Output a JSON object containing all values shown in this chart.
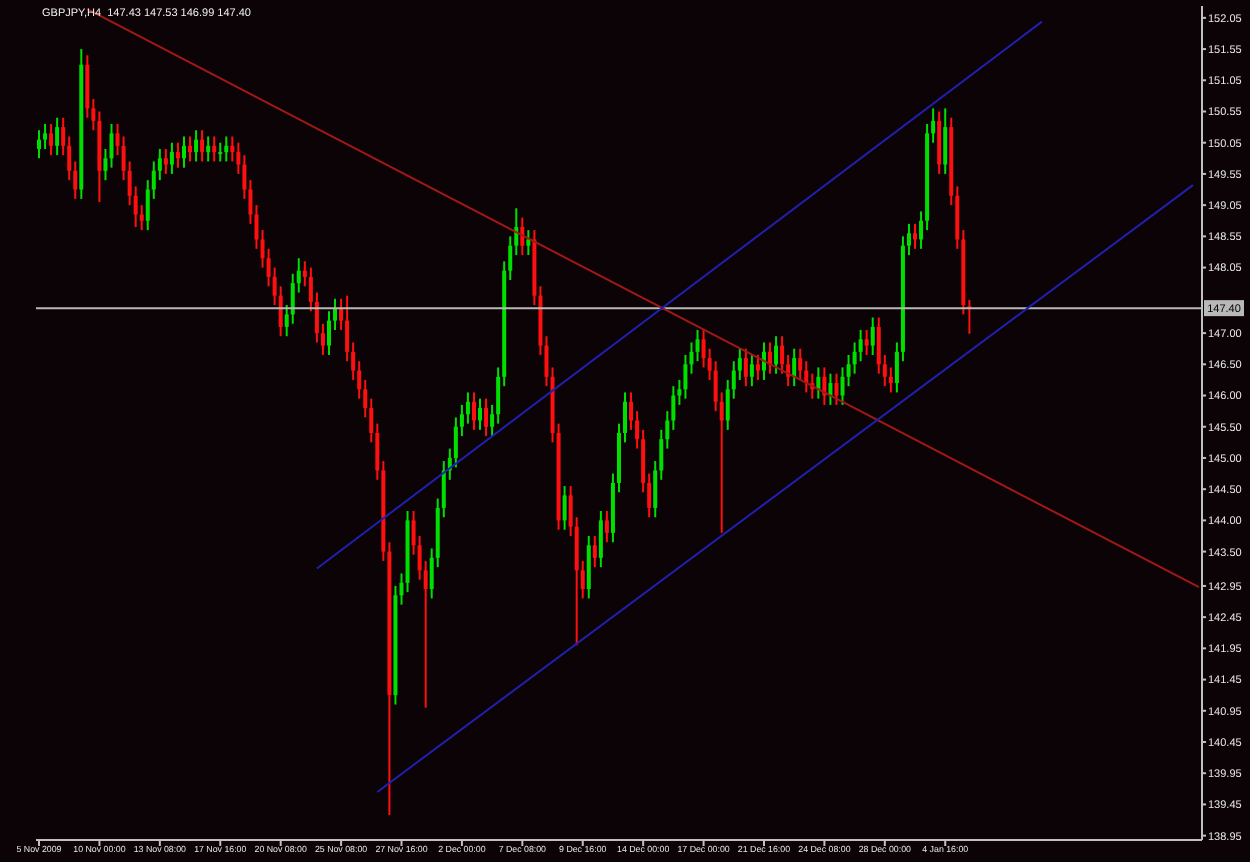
{
  "chart_data": {
    "type": "candlestick",
    "title": "GBPJPY,H4  147.43 147.53 146.99 147.40",
    "categories": [
      "5 Nov 2009",
      null,
      null,
      null,
      null,
      null,
      null,
      null,
      null,
      null,
      "10 Nov 00:00",
      null,
      null,
      null,
      null,
      null,
      null,
      null,
      null,
      null,
      "13 Nov 08:00",
      null,
      null,
      null,
      null,
      null,
      null,
      null,
      null,
      null,
      "17 Nov 16:00",
      null,
      null,
      null,
      null,
      null,
      null,
      null,
      null,
      null,
      "20 Nov 08:00",
      null,
      null,
      null,
      null,
      null,
      null,
      null,
      null,
      null,
      "25 Nov 08:00",
      null,
      null,
      null,
      null,
      null,
      null,
      null,
      null,
      null,
      "27 Nov 16:00",
      null,
      null,
      null,
      null,
      null,
      null,
      null,
      null,
      null,
      "2 Dec 00:00",
      null,
      null,
      null,
      null,
      null,
      null,
      null,
      null,
      null,
      "7 Dec 08:00",
      null,
      null,
      null,
      null,
      null,
      null,
      null,
      null,
      null,
      "9 Dec 16:00",
      null,
      null,
      null,
      null,
      null,
      null,
      null,
      null,
      null,
      "14 Dec 00:00",
      null,
      null,
      null,
      null,
      null,
      null,
      null,
      null,
      null,
      "17 Dec 00:00",
      null,
      null,
      null,
      null,
      null,
      null,
      null,
      null,
      null,
      "21 Dec 16:00",
      null,
      null,
      null,
      null,
      null,
      null,
      null,
      null,
      null,
      "24 Dec 08:00",
      null,
      null,
      null,
      null,
      null,
      null,
      null,
      null,
      null,
      "28 Dec 00:00",
      null,
      null,
      null,
      null,
      null,
      null,
      null,
      null,
      null,
      "4 Jan 16:00",
      null,
      null,
      null,
      null,
      null,
      null,
      null,
      null,
      null,
      null,
      null,
      null,
      null,
      null,
      null,
      null,
      null,
      null,
      null,
      null,
      null,
      null,
      null,
      null,
      null,
      null,
      null,
      null,
      null,
      null,
      null,
      null,
      null,
      null,
      null,
      null,
      null,
      null,
      null,
      null,
      null,
      null
    ],
    "ohlc": [
      [
        149.95,
        150.25,
        149.8,
        150.1
      ],
      [
        150.1,
        150.35,
        149.95,
        150.2
      ],
      [
        150.2,
        150.35,
        149.85,
        150.0
      ],
      [
        150.0,
        150.45,
        149.85,
        150.3
      ],
      [
        150.3,
        150.45,
        149.85,
        150.0
      ],
      [
        150.0,
        150.15,
        149.45,
        149.6
      ],
      [
        149.6,
        149.75,
        149.15,
        149.3
      ],
      [
        149.3,
        151.55,
        149.15,
        151.3
      ],
      [
        151.3,
        151.45,
        150.45,
        150.6
      ],
      [
        150.6,
        150.75,
        150.25,
        150.4
      ],
      [
        150.4,
        150.55,
        149.1,
        149.6
      ],
      [
        149.6,
        149.95,
        149.45,
        149.8
      ],
      [
        149.8,
        150.35,
        149.65,
        150.2
      ],
      [
        150.2,
        150.35,
        149.85,
        150.0
      ],
      [
        150.0,
        150.15,
        149.45,
        149.6
      ],
      [
        149.6,
        149.75,
        149.05,
        149.2
      ],
      [
        149.2,
        149.35,
        148.7,
        148.9
      ],
      [
        148.9,
        149.05,
        148.65,
        148.8
      ],
      [
        148.8,
        149.45,
        148.65,
        149.3
      ],
      [
        149.3,
        149.75,
        149.15,
        149.6
      ],
      [
        149.6,
        149.95,
        149.45,
        149.8
      ],
      [
        149.8,
        149.95,
        149.55,
        149.7
      ],
      [
        149.7,
        150.05,
        149.55,
        149.9
      ],
      [
        149.9,
        150.05,
        149.65,
        149.8
      ],
      [
        149.8,
        150.15,
        149.65,
        150.0
      ],
      [
        150.0,
        150.15,
        149.75,
        149.9
      ],
      [
        149.9,
        150.25,
        149.75,
        150.1
      ],
      [
        150.1,
        150.25,
        149.75,
        149.9
      ],
      [
        149.9,
        150.15,
        149.75,
        150.0
      ],
      [
        150.0,
        150.15,
        149.75,
        149.9
      ],
      [
        149.9,
        150.05,
        149.75,
        149.9
      ],
      [
        149.9,
        150.15,
        149.75,
        150.0
      ],
      [
        150.0,
        150.15,
        149.75,
        149.9
      ],
      [
        149.9,
        150.05,
        149.55,
        149.7
      ],
      [
        149.7,
        149.85,
        149.15,
        149.3
      ],
      [
        149.3,
        149.45,
        148.75,
        148.9
      ],
      [
        148.9,
        149.05,
        148.35,
        148.5
      ],
      [
        148.5,
        148.65,
        148.05,
        148.2
      ],
      [
        148.2,
        148.35,
        147.75,
        147.9
      ],
      [
        147.9,
        148.05,
        147.45,
        147.6
      ],
      [
        147.6,
        147.75,
        146.95,
        147.1
      ],
      [
        147.1,
        147.45,
        146.95,
        147.3
      ],
      [
        147.3,
        147.95,
        147.15,
        147.8
      ],
      [
        147.8,
        148.2,
        147.65,
        148.0
      ],
      [
        148.0,
        148.15,
        147.75,
        147.9
      ],
      [
        147.9,
        148.05,
        147.35,
        147.5
      ],
      [
        147.5,
        147.65,
        146.85,
        147.0
      ],
      [
        147.0,
        147.15,
        146.65,
        146.8
      ],
      [
        146.8,
        147.35,
        146.65,
        147.2
      ],
      [
        147.2,
        147.55,
        147.05,
        147.4
      ],
      [
        147.4,
        147.55,
        147.05,
        147.2
      ],
      [
        147.2,
        147.6,
        146.55,
        146.7
      ],
      [
        146.7,
        146.85,
        146.25,
        146.4
      ],
      [
        146.4,
        146.55,
        145.95,
        146.1
      ],
      [
        146.1,
        146.25,
        145.65,
        145.8
      ],
      [
        145.8,
        145.95,
        145.25,
        145.4
      ],
      [
        145.4,
        145.55,
        144.65,
        144.8
      ],
      [
        144.8,
        144.95,
        143.35,
        143.5
      ],
      [
        143.5,
        143.65,
        139.28,
        141.2
      ],
      [
        141.2,
        142.95,
        141.05,
        142.8
      ],
      [
        142.8,
        143.15,
        142.65,
        143.0
      ],
      [
        143.0,
        144.15,
        142.85,
        144.0
      ],
      [
        144.0,
        144.15,
        143.45,
        143.6
      ],
      [
        143.6,
        143.75,
        143.05,
        143.2
      ],
      [
        143.2,
        143.35,
        141.0,
        142.9
      ],
      [
        142.9,
        143.55,
        142.75,
        143.4
      ],
      [
        143.4,
        144.35,
        143.25,
        144.2
      ],
      [
        144.2,
        144.95,
        144.05,
        144.8
      ],
      [
        144.8,
        145.15,
        144.65,
        145.0
      ],
      [
        145.0,
        145.65,
        144.85,
        145.5
      ],
      [
        145.5,
        145.85,
        145.35,
        145.7
      ],
      [
        145.7,
        146.05,
        145.55,
        145.9
      ],
      [
        145.9,
        146.05,
        145.45,
        145.6
      ],
      [
        145.6,
        145.95,
        145.45,
        145.8
      ],
      [
        145.8,
        145.95,
        145.35,
        145.5
      ],
      [
        145.5,
        145.85,
        145.35,
        145.7
      ],
      [
        145.7,
        146.45,
        145.55,
        146.3
      ],
      [
        146.3,
        148.15,
        146.15,
        148.0
      ],
      [
        148.0,
        148.55,
        147.85,
        148.4
      ],
      [
        148.4,
        149.0,
        148.25,
        148.7
      ],
      [
        148.7,
        148.85,
        148.25,
        148.4
      ],
      [
        148.4,
        148.65,
        148.25,
        148.5
      ],
      [
        148.5,
        148.65,
        147.45,
        147.6
      ],
      [
        147.6,
        147.75,
        146.65,
        146.8
      ],
      [
        146.8,
        146.95,
        146.15,
        146.3
      ],
      [
        146.3,
        146.45,
        145.25,
        145.4
      ],
      [
        145.4,
        145.55,
        143.85,
        144.0
      ],
      [
        144.0,
        144.55,
        143.85,
        144.4
      ],
      [
        144.4,
        144.55,
        143.75,
        143.9
      ],
      [
        143.9,
        144.05,
        142.0,
        143.2
      ],
      [
        143.2,
        143.35,
        142.75,
        142.9
      ],
      [
        142.9,
        143.75,
        142.75,
        143.6
      ],
      [
        143.6,
        143.75,
        143.25,
        143.4
      ],
      [
        143.4,
        144.15,
        143.25,
        144.0
      ],
      [
        144.0,
        144.15,
        143.65,
        143.8
      ],
      [
        143.8,
        144.75,
        143.65,
        144.6
      ],
      [
        144.6,
        145.55,
        144.45,
        145.4
      ],
      [
        145.4,
        146.05,
        145.25,
        145.9
      ],
      [
        145.9,
        146.05,
        145.45,
        145.6
      ],
      [
        145.6,
        145.75,
        145.15,
        145.3
      ],
      [
        145.3,
        145.45,
        144.45,
        144.6
      ],
      [
        144.6,
        144.75,
        144.05,
        144.2
      ],
      [
        144.2,
        144.95,
        144.05,
        144.8
      ],
      [
        144.8,
        145.45,
        144.65,
        145.3
      ],
      [
        145.3,
        145.75,
        145.15,
        145.6
      ],
      [
        145.6,
        146.15,
        145.45,
        146.0
      ],
      [
        146.0,
        146.25,
        145.85,
        146.1
      ],
      [
        146.1,
        146.65,
        145.95,
        146.5
      ],
      [
        146.5,
        146.85,
        146.35,
        146.7
      ],
      [
        146.7,
        147.05,
        146.55,
        146.9
      ],
      [
        146.9,
        147.05,
        146.45,
        146.6
      ],
      [
        146.6,
        146.75,
        146.25,
        146.4
      ],
      [
        146.4,
        146.55,
        145.75,
        145.9
      ],
      [
        145.9,
        146.05,
        143.8,
        145.6
      ],
      [
        145.6,
        146.25,
        145.45,
        146.1
      ],
      [
        146.1,
        146.55,
        145.95,
        146.4
      ],
      [
        146.4,
        146.75,
        146.25,
        146.6
      ],
      [
        146.6,
        146.75,
        146.15,
        146.3
      ],
      [
        146.3,
        146.65,
        146.15,
        146.5
      ],
      [
        146.5,
        146.65,
        146.25,
        146.4
      ],
      [
        146.4,
        146.85,
        146.25,
        146.7
      ],
      [
        146.7,
        146.85,
        146.35,
        146.5
      ],
      [
        146.5,
        146.95,
        146.35,
        146.8
      ],
      [
        146.8,
        146.95,
        146.35,
        146.5
      ],
      [
        146.5,
        146.65,
        146.15,
        146.3
      ],
      [
        146.3,
        146.75,
        146.15,
        146.6
      ],
      [
        146.6,
        146.75,
        146.25,
        146.4
      ],
      [
        146.4,
        146.55,
        146.05,
        146.2
      ],
      [
        146.2,
        146.35,
        145.95,
        146.1
      ],
      [
        146.1,
        146.45,
        145.95,
        146.3
      ],
      [
        146.3,
        146.45,
        145.85,
        146.0
      ],
      [
        146.0,
        146.35,
        145.85,
        146.2
      ],
      [
        146.2,
        146.35,
        145.85,
        146.0
      ],
      [
        146.0,
        146.45,
        145.85,
        146.3
      ],
      [
        146.3,
        146.65,
        146.15,
        146.5
      ],
      [
        146.5,
        146.85,
        146.35,
        146.7
      ],
      [
        146.7,
        147.05,
        146.55,
        146.9
      ],
      [
        146.9,
        147.05,
        146.65,
        146.8
      ],
      [
        146.8,
        147.25,
        146.65,
        147.1
      ],
      [
        147.1,
        147.25,
        146.35,
        146.5
      ],
      [
        146.5,
        146.65,
        146.15,
        146.3
      ],
      [
        146.3,
        146.45,
        146.05,
        146.2
      ],
      [
        146.2,
        146.85,
        146.05,
        146.7
      ],
      [
        146.7,
        148.55,
        146.55,
        148.4
      ],
      [
        148.4,
        148.75,
        148.25,
        148.6
      ],
      [
        148.6,
        148.75,
        148.35,
        148.5
      ],
      [
        148.5,
        148.95,
        148.35,
        148.8
      ],
      [
        148.8,
        150.35,
        148.65,
        150.2
      ],
      [
        150.2,
        150.6,
        150.05,
        150.4
      ],
      [
        150.4,
        150.55,
        149.55,
        149.7
      ],
      [
        149.7,
        150.6,
        149.55,
        150.3
      ],
      [
        150.3,
        150.45,
        149.05,
        149.2
      ],
      [
        149.2,
        149.35,
        148.35,
        148.5
      ],
      [
        148.5,
        148.65,
        147.3,
        147.45
      ],
      [
        147.43,
        147.53,
        146.99,
        147.4
      ],
      null,
      null,
      null,
      null,
      null,
      null,
      null,
      null,
      null,
      null,
      null,
      null,
      null,
      null,
      null,
      null,
      null,
      null,
      null,
      null,
      null,
      null,
      null,
      null,
      null,
      null,
      null,
      null,
      null,
      null,
      null,
      null,
      null,
      null,
      null,
      null,
      null,
      null
    ],
    "series": [
      {
        "type": "line",
        "color": "#a01818",
        "values": [
          null,
          null,
          null,
          null,
          null,
          null,
          null,
          null,
          152.19,
          null,
          null,
          null,
          null,
          null,
          null,
          null,
          null,
          null,
          null,
          null,
          null,
          null,
          null,
          null,
          null,
          null,
          null,
          null,
          null,
          null,
          null,
          null,
          null,
          null,
          null,
          null,
          null,
          null,
          null,
          null,
          null,
          null,
          null,
          null,
          null,
          null,
          null,
          null,
          null,
          null,
          null,
          null,
          null,
          null,
          null,
          null,
          null,
          null,
          null,
          null,
          null,
          null,
          null,
          null,
          null,
          null,
          null,
          null,
          null,
          null,
          null,
          null,
          null,
          null,
          null,
          null,
          null,
          null,
          null,
          null,
          null,
          null,
          null,
          null,
          null,
          null,
          null,
          null,
          null,
          null,
          null,
          null,
          null,
          null,
          null,
          null,
          null,
          null,
          null,
          null,
          null,
          null,
          null,
          null,
          null,
          null,
          null,
          null,
          null,
          null,
          null,
          null,
          null,
          null,
          null,
          null,
          null,
          null,
          null,
          null,
          null,
          null,
          null,
          null,
          null,
          null,
          null,
          null,
          null,
          null,
          null,
          null,
          null,
          null,
          null,
          null,
          null,
          null,
          null,
          null,
          null,
          null,
          null,
          null,
          null,
          null,
          null,
          null,
          null,
          null,
          null,
          null,
          null,
          null,
          null,
          null,
          null,
          null,
          null,
          null,
          null,
          null,
          null,
          null,
          null,
          null,
          null,
          null,
          null,
          null,
          null,
          null,
          null,
          null,
          null,
          null,
          null,
          null,
          null,
          null,
          null,
          null,
          null,
          null,
          null,
          null,
          null,
          null,
          null,
          null,
          null,
          null,
          142.93
        ]
      },
      {
        "type": "line",
        "color": "#2020b0",
        "values": [
          null,
          null,
          null,
          null,
          null,
          null,
          null,
          null,
          null,
          null,
          null,
          null,
          null,
          null,
          null,
          null,
          null,
          null,
          null,
          null,
          null,
          null,
          null,
          null,
          null,
          null,
          null,
          null,
          null,
          null,
          null,
          null,
          null,
          null,
          null,
          null,
          null,
          null,
          null,
          null,
          null,
          null,
          null,
          null,
          null,
          null,
          143.23,
          null,
          null,
          null,
          null,
          null,
          null,
          null,
          null,
          null,
          null,
          null,
          null,
          null,
          null,
          null,
          null,
          null,
          null,
          null,
          null,
          null,
          null,
          null,
          null,
          null,
          null,
          null,
          null,
          null,
          null,
          null,
          null,
          null,
          null,
          null,
          null,
          null,
          null,
          null,
          null,
          null,
          null,
          null,
          null,
          null,
          null,
          null,
          null,
          null,
          null,
          null,
          null,
          null,
          null,
          null,
          null,
          null,
          null,
          null,
          null,
          null,
          null,
          null,
          null,
          null,
          null,
          null,
          null,
          null,
          null,
          null,
          null,
          null,
          null,
          null,
          null,
          null,
          null,
          null,
          null,
          null,
          null,
          null,
          null,
          null,
          null,
          null,
          null,
          null,
          null,
          null,
          null,
          null,
          null,
          null,
          null,
          null,
          null,
          null,
          null,
          null,
          null,
          null,
          null,
          null,
          null,
          null,
          null,
          null,
          null,
          null,
          null,
          null,
          null,
          null,
          null,
          null,
          null,
          null,
          151.99,
          null,
          null,
          null,
          null,
          null,
          null,
          null,
          null,
          null,
          null,
          null,
          null,
          null,
          null,
          null,
          null,
          null,
          null,
          null,
          null,
          null,
          null,
          null,
          null,
          null,
          null
        ]
      },
      {
        "type": "line",
        "color": "#2020b0",
        "values": [
          null,
          null,
          null,
          null,
          null,
          null,
          null,
          null,
          null,
          null,
          null,
          null,
          null,
          null,
          null,
          null,
          null,
          null,
          null,
          null,
          null,
          null,
          null,
          null,
          null,
          null,
          null,
          null,
          null,
          null,
          null,
          null,
          null,
          null,
          null,
          null,
          null,
          null,
          null,
          null,
          null,
          null,
          null,
          null,
          null,
          null,
          null,
          null,
          null,
          null,
          null,
          null,
          null,
          null,
          null,
          null,
          139.65,
          null,
          null,
          null,
          null,
          null,
          null,
          null,
          null,
          null,
          null,
          null,
          null,
          null,
          null,
          null,
          null,
          null,
          null,
          null,
          null,
          null,
          null,
          null,
          null,
          null,
          null,
          null,
          null,
          null,
          null,
          null,
          null,
          null,
          null,
          null,
          null,
          null,
          null,
          null,
          null,
          null,
          null,
          null,
          null,
          null,
          null,
          null,
          null,
          null,
          null,
          null,
          null,
          null,
          null,
          null,
          null,
          null,
          null,
          null,
          null,
          null,
          null,
          null,
          null,
          null,
          null,
          null,
          null,
          null,
          null,
          null,
          null,
          null,
          null,
          null,
          null,
          null,
          null,
          null,
          null,
          null,
          null,
          null,
          null,
          null,
          null,
          null,
          null,
          null,
          null,
          null,
          null,
          null,
          null,
          null,
          null,
          null,
          null,
          null,
          null,
          null,
          null,
          null,
          null,
          null,
          null,
          null,
          null,
          null,
          null,
          null,
          null,
          null,
          null,
          null,
          null,
          null,
          null,
          null,
          null,
          null,
          null,
          null,
          null,
          null,
          null,
          null,
          null,
          null,
          null,
          null,
          null,
          null,
          null,
          149.37,
          null
        ]
      }
    ],
    "ylim": [
      138.88,
      152.24
    ],
    "yticks": [
      152.05,
      151.55,
      151.05,
      150.55,
      150.05,
      149.55,
      149.05,
      148.55,
      148.05,
      {
        "value": 147,
        "label": "147.00"
      },
      {
        "value": 146.5,
        "label": "146.50"
      },
      {
        "value": 146,
        "label": "146.00"
      },
      {
        "value": 145.5,
        "label": "145.50"
      },
      {
        "value": 145,
        "label": "145.00"
      },
      {
        "value": 144.5,
        "label": "144.50"
      },
      {
        "value": 144,
        "label": "144.00"
      },
      {
        "value": 143.5,
        "label": "143.50"
      },
      142.95,
      142.45,
      141.95,
      141.45,
      140.95,
      140.45,
      139.95,
      139.45,
      138.95
    ],
    "ref_lines": [
      {
        "axis": "y",
        "value": 147.4,
        "label": "147.40",
        "color": "#b8b8b8"
      }
    ]
  }
}
